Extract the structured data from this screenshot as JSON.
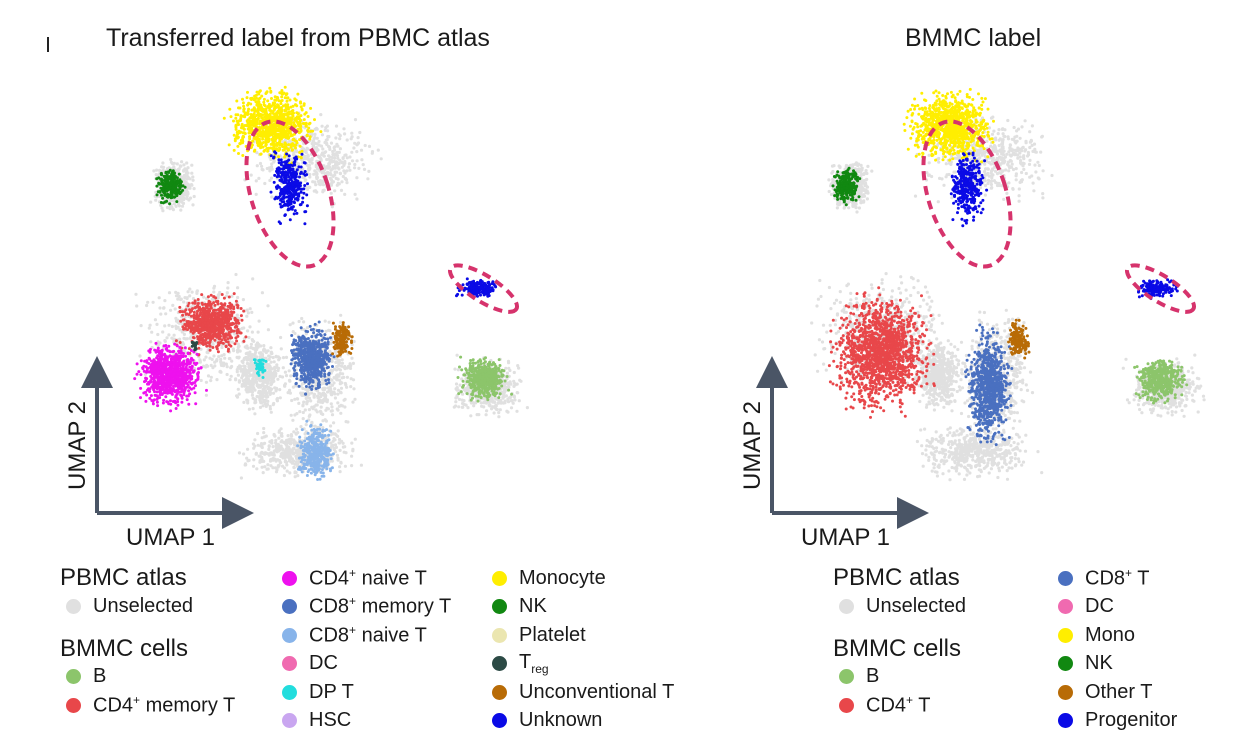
{
  "chart_data": [
    {
      "type": "scatter",
      "title": "Transferred label from PBMC atlas",
      "xlabel": "UMAP 1",
      "ylabel": "UMAP 2",
      "highlight_regions": 2,
      "clusters": [
        {
          "name": "Monocyte",
          "color": "#ffee00",
          "x": 0.36,
          "y": 0.86
        },
        {
          "name": "Unknown",
          "color": "#0a0ae6",
          "x": 0.4,
          "y": 0.72
        },
        {
          "name": "NK",
          "color": "#118811",
          "x": 0.12,
          "y": 0.72
        },
        {
          "name": "CD4+ memory T",
          "color": "#e8474a",
          "x": 0.22,
          "y": 0.4
        },
        {
          "name": "CD4+ naive T",
          "color": "#ee11ee",
          "x": 0.12,
          "y": 0.28
        },
        {
          "name": "CD8+ memory T",
          "color": "#4a70c0",
          "x": 0.45,
          "y": 0.32
        },
        {
          "name": "CD8+ naive T",
          "color": "#88b4ea",
          "x": 0.46,
          "y": 0.1
        },
        {
          "name": "Unconventional T",
          "color": "#b86b06",
          "x": 0.52,
          "y": 0.36
        },
        {
          "name": "B",
          "color": "#8cc56b",
          "x": 0.85,
          "y": 0.27
        },
        {
          "name": "Unknown",
          "color": "#0a0ae6",
          "x": 0.84,
          "y": 0.48
        },
        {
          "name": "DP T",
          "color": "#22dddd",
          "x": 0.33,
          "y": 0.3
        },
        {
          "name": "Treg",
          "color": "#2c4a45",
          "x": 0.18,
          "y": 0.35
        }
      ]
    },
    {
      "type": "scatter",
      "title": "BMMC label",
      "xlabel": "UMAP 1",
      "ylabel": "UMAP 2",
      "highlight_regions": 2,
      "clusters": [
        {
          "name": "Mono",
          "color": "#ffee00",
          "x": 0.36,
          "y": 0.86
        },
        {
          "name": "Progenitor",
          "color": "#0a0ae6",
          "x": 0.4,
          "y": 0.72
        },
        {
          "name": "NK",
          "color": "#118811",
          "x": 0.12,
          "y": 0.72
        },
        {
          "name": "CD4+ T",
          "color": "#e8474a",
          "x": 0.2,
          "y": 0.33
        },
        {
          "name": "CD8+ T",
          "color": "#4a70c0",
          "x": 0.45,
          "y": 0.25
        },
        {
          "name": "Other T",
          "color": "#b86b06",
          "x": 0.52,
          "y": 0.36
        },
        {
          "name": "B",
          "color": "#8cc56b",
          "x": 0.85,
          "y": 0.27
        },
        {
          "name": "Progenitor",
          "color": "#0a0ae6",
          "x": 0.84,
          "y": 0.48
        }
      ]
    }
  ],
  "legend_left": {
    "pbmc_header": "PBMC atlas",
    "unselected": "Unselected",
    "bmmc_header": "BMMC cells",
    "col1": [
      {
        "label": "B",
        "color": "#8cc56b"
      },
      {
        "base": "CD4",
        "sup": "+",
        "rest": " memory T",
        "color": "#e8474a"
      }
    ],
    "col2": [
      {
        "base": "CD4",
        "sup": "+",
        "rest": " naive T",
        "color": "#ee11ee"
      },
      {
        "base": "CD8",
        "sup": "+",
        "rest": " memory T",
        "color": "#4a70c0"
      },
      {
        "base": "CD8",
        "sup": "+",
        "rest": " naive T",
        "color": "#88b4ea"
      },
      {
        "label": "DC",
        "color": "#f06ab0"
      },
      {
        "label": "DP T",
        "color": "#22dddd"
      },
      {
        "label": "HSC",
        "color": "#c9a6f0"
      }
    ],
    "col3": [
      {
        "label": "Monocyte",
        "color": "#ffee00"
      },
      {
        "label": "NK",
        "color": "#118811"
      },
      {
        "label": "Platelet",
        "color": "#ebe6b0"
      },
      {
        "base": "T",
        "sub": "reg",
        "color": "#2c4a45"
      },
      {
        "label": "Unconventional T",
        "color": "#b86b06"
      },
      {
        "label": "Unknown",
        "color": "#0a0ae6"
      }
    ]
  },
  "legend_right": {
    "pbmc_header": "PBMC atlas",
    "unselected": "Unselected",
    "bmmc_header": "BMMC cells",
    "col1": [
      {
        "label": "B",
        "color": "#8cc56b"
      },
      {
        "base": "CD4",
        "sup": "+",
        "rest": " T",
        "color": "#e8474a"
      }
    ],
    "col2": [
      {
        "base": "CD8",
        "sup": "+",
        "rest": " T",
        "color": "#4a70c0"
      },
      {
        "label": "DC",
        "color": "#f06ab0"
      },
      {
        "label": "Mono",
        "color": "#ffee00"
      },
      {
        "label": "NK",
        "color": "#118811"
      },
      {
        "label": "Other T",
        "color": "#b86b06"
      },
      {
        "label": "Progenitor",
        "color": "#0a0ae6"
      }
    ]
  },
  "colors": {
    "unselected": "#e0e0e0",
    "highlight": "#d6336c",
    "axis": "#4a5566"
  }
}
